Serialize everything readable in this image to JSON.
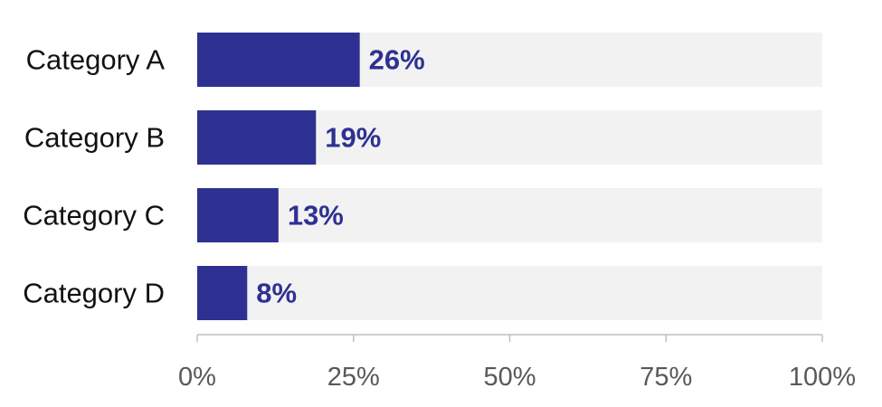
{
  "chart_data": {
    "type": "bar",
    "orientation": "horizontal",
    "title": "",
    "xlabel": "",
    "ylabel": "",
    "categories": [
      "Category A",
      "Category B",
      "Category C",
      "Category D"
    ],
    "values": [
      26,
      19,
      13,
      8
    ],
    "data_labels": [
      "26%",
      "19%",
      "13%",
      "8%"
    ],
    "xlim": [
      0,
      100
    ],
    "x_ticks": [
      0,
      25,
      50,
      75,
      100
    ],
    "x_tick_labels": [
      "0%",
      "25%",
      "50%",
      "75%",
      "100%"
    ],
    "background_track": true,
    "grid": false,
    "legend": "none",
    "colors": {
      "bar": "#2E3192",
      "track": "#F2F2F2",
      "data_label": "#2E3192",
      "axis": "#BFBFBF",
      "tick_label": "#595959",
      "category_label": "#111111"
    }
  }
}
